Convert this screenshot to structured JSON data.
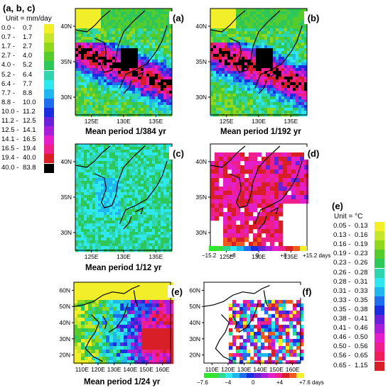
{
  "left_legend": {
    "title": "(a, b, c)",
    "unit": "Unit = mm/day",
    "rows": [
      {
        "lo": "0.0",
        "hi": "0.7",
        "color": "#f2ee2a"
      },
      {
        "lo": "0.7",
        "hi": "1.7",
        "color": "#c5e62a"
      },
      {
        "lo": "1.7",
        "hi": "2.7",
        "color": "#8fd81e"
      },
      {
        "lo": "2.7",
        "hi": "4.0",
        "color": "#55cc2c"
      },
      {
        "lo": "4.0",
        "hi": "5.2",
        "color": "#2ec85a"
      },
      {
        "lo": "5.2",
        "hi": "6.4",
        "color": "#2ed6b0"
      },
      {
        "lo": "6.4",
        "hi": "7.7",
        "color": "#2ee8ee"
      },
      {
        "lo": "7.7",
        "hi": "8.8",
        "color": "#20b6ee"
      },
      {
        "lo": "8.8",
        "hi": "10.0",
        "color": "#1e6eee"
      },
      {
        "lo": "10.0",
        "hi": "11.2",
        "color": "#1a2ee0"
      },
      {
        "lo": "11.2",
        "hi": "12.5",
        "color": "#6a22d8"
      },
      {
        "lo": "12.5",
        "hi": "14.1",
        "color": "#a81ed8"
      },
      {
        "lo": "14.1",
        "hi": "16.5",
        "color": "#e41ec8"
      },
      {
        "lo": "16.5",
        "hi": "19.4",
        "color": "#ee1e8a"
      },
      {
        "lo": "19.4",
        "hi": "40.0",
        "color": "#d81e26"
      },
      {
        "lo": "40.0",
        "hi": "83.8",
        "color": "#000000"
      }
    ]
  },
  "right_legend": {
    "title": "(e)",
    "unit": "Unit = °C",
    "rows": [
      {
        "lo": "0.05",
        "hi": "0.13",
        "color": "#f2ee2a"
      },
      {
        "lo": "0.13",
        "hi": "0.16",
        "color": "#c5e62a"
      },
      {
        "lo": "0.16",
        "hi": "0.19",
        "color": "#8fd81e"
      },
      {
        "lo": "0.19",
        "hi": "0.23",
        "color": "#55cc2c"
      },
      {
        "lo": "0.23",
        "hi": "0.26",
        "color": "#2ec85a"
      },
      {
        "lo": "0.26",
        "hi": "0.28",
        "color": "#2ed6b0"
      },
      {
        "lo": "0.28",
        "hi": "0.31",
        "color": "#2ee8ee"
      },
      {
        "lo": "0.31",
        "hi": "0.33",
        "color": "#20b6ee"
      },
      {
        "lo": "0.33",
        "hi": "0.35",
        "color": "#1e6eee"
      },
      {
        "lo": "0.35",
        "hi": "0.38",
        "color": "#1a2ee0"
      },
      {
        "lo": "0.38",
        "hi": "0.41",
        "color": "#6a22d8"
      },
      {
        "lo": "0.41",
        "hi": "0.46",
        "color": "#a81ed8"
      },
      {
        "lo": "0.46",
        "hi": "0.50",
        "color": "#e41ec8"
      },
      {
        "lo": "0.50",
        "hi": "0.56",
        "color": "#ee1e8a"
      },
      {
        "lo": "0.56",
        "hi": "0.65",
        "color": "#ee1e5a"
      },
      {
        "lo": "0.65",
        "hi": "1.15",
        "color": "#d81e26"
      }
    ]
  },
  "colorbar_d": {
    "labels": [
      "−15.2",
      "−8",
      "0",
      "+8",
      "+15.2 days"
    ],
    "colors": [
      "#2ee82e",
      "#38e038",
      "#2ed890",
      "#2ee8ee",
      "#20b6ee",
      "#1e6eee",
      "#1a2ee0",
      "#6a22d8",
      "#a81ed8",
      "#e41ec8",
      "#ee1e8a",
      "#d81e26",
      "#ee5a1e",
      "#f2ee2a"
    ]
  },
  "colorbar_f": {
    "labels": [
      "−7.6",
      "−4",
      "0",
      "+4",
      "+7.6 days"
    ],
    "colors": [
      "#2ee82e",
      "#38e038",
      "#2ed890",
      "#2ee8ee",
      "#20b6ee",
      "#1e6eee",
      "#1a2ee0",
      "#6a22d8",
      "#a81ed8",
      "#e41ec8",
      "#ee1e8a",
      "#d81e26",
      "#ee5a1e",
      "#f2ee2a"
    ]
  },
  "chart_data": [
    {
      "type": "heatmap",
      "panel": "(a)",
      "title": "Mean period  1/384 yr",
      "xticks": [
        "125E",
        "130E",
        "135E"
      ],
      "yticks": [
        "40N",
        "35N",
        "30N"
      ]
    },
    {
      "type": "heatmap",
      "panel": "(b)",
      "title": "Mean period  1/192 yr",
      "xticks": [
        "125E",
        "130E",
        "135E"
      ],
      "yticks": []
    },
    {
      "type": "heatmap",
      "panel": "(c)",
      "title": "Mean period  1/12 yr",
      "xticks": [
        "125E",
        "130E",
        "135E"
      ],
      "yticks": [
        "40N",
        "35N",
        "30N"
      ]
    },
    {
      "type": "heatmap",
      "panel": "(d)",
      "title": "",
      "xticks": [
        "125E",
        "130E",
        "135E"
      ],
      "yticks": []
    },
    {
      "type": "heatmap",
      "panel": "(e)",
      "title": "Mean period  1/24 yr",
      "xticks": [
        "110E",
        "120E",
        "130E",
        "140E",
        "150E",
        "160E"
      ],
      "yticks": [
        "60N",
        "50N",
        "40N",
        "30N",
        "20N"
      ]
    },
    {
      "type": "heatmap",
      "panel": "(f)",
      "title": "",
      "xticks": [
        "110E",
        "120E",
        "130E",
        "140E",
        "150E",
        "160E"
      ],
      "yticks": []
    }
  ]
}
